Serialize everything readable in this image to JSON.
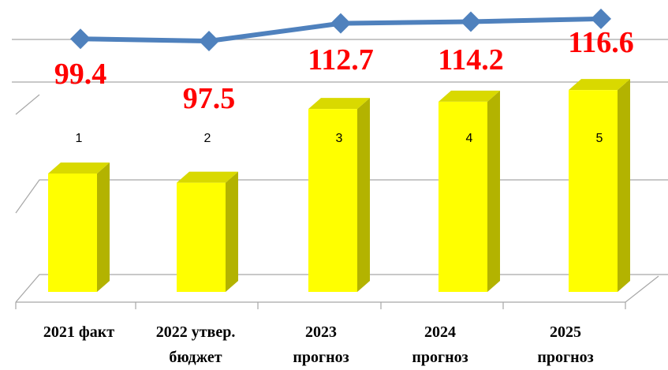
{
  "chart_data": [
    {
      "type": "line",
      "x": [
        "1",
        "2",
        "3",
        "4",
        "5"
      ],
      "values": [
        99.4,
        97.5,
        112.7,
        114.2,
        116.6
      ],
      "data_labels": [
        "99.4",
        "97.5",
        "112.7",
        "114.2",
        "116.6"
      ],
      "series_color": "#4f81bd",
      "label_color": "#ff0000",
      "grid": true
    },
    {
      "type": "bar",
      "categories": [
        [
          "2021 факт"
        ],
        [
          "2022 утвер.",
          "бюджет"
        ],
        [
          "2023",
          "прогноз"
        ],
        [
          "2024",
          "прогноз"
        ],
        [
          "2025",
          "прогноз"
        ]
      ],
      "values": [
        99.4,
        97.5,
        112.7,
        114.2,
        116.6
      ],
      "bar_color": "#ffff00",
      "bar_side_color": "#b3b300",
      "bar_top_color": "#d9d900",
      "grid": true
    }
  ]
}
